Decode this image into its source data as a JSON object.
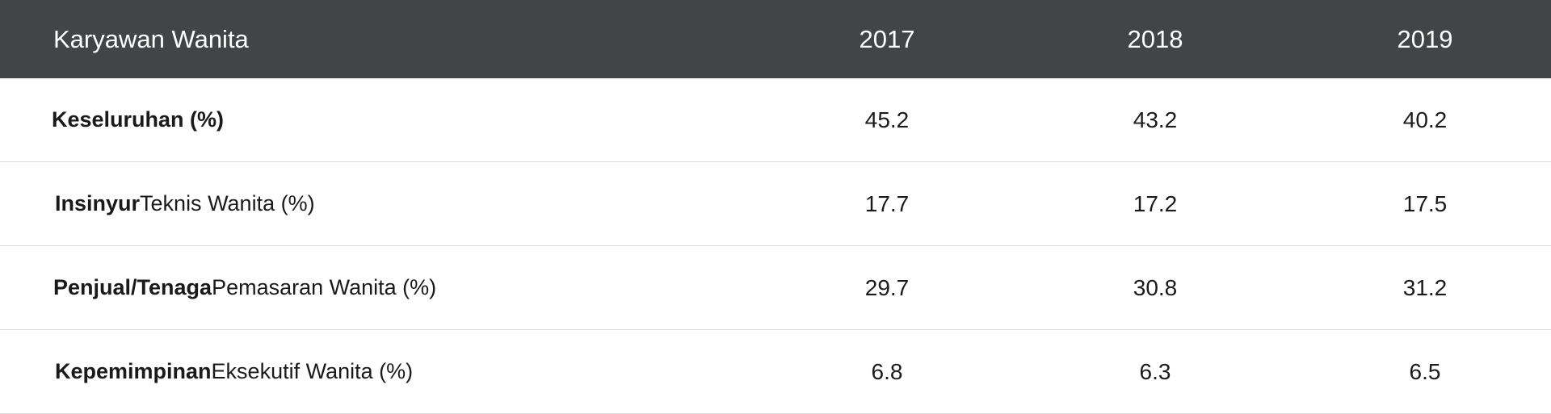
{
  "chart_data": {
    "type": "table",
    "header": {
      "label": "Karyawan Wanita",
      "years": [
        "2017",
        "2018",
        "2019"
      ]
    },
    "rows": [
      {
        "label_bold": "Keseluruhan (%)",
        "label_rest": "",
        "values": [
          "45.2",
          "43.2",
          "40.2"
        ]
      },
      {
        "label_bold": "Insinyur",
        "label_rest": " Teknis Wanita (%)",
        "values": [
          "17.7",
          "17.2",
          "17.5"
        ]
      },
      {
        "label_bold": "Penjual/Tenaga",
        "label_rest": " Pemasaran Wanita (%)",
        "values": [
          "29.7",
          "30.8",
          "31.2"
        ]
      },
      {
        "label_bold": "Kepemimpinan",
        "label_rest": " Eksekutif Wanita (%)",
        "values": [
          "6.8",
          "6.3",
          "6.5"
        ]
      }
    ]
  },
  "colors": {
    "header_bg": "#434446",
    "header_text": "#ffffff",
    "row_border": "#dcdcdc"
  }
}
